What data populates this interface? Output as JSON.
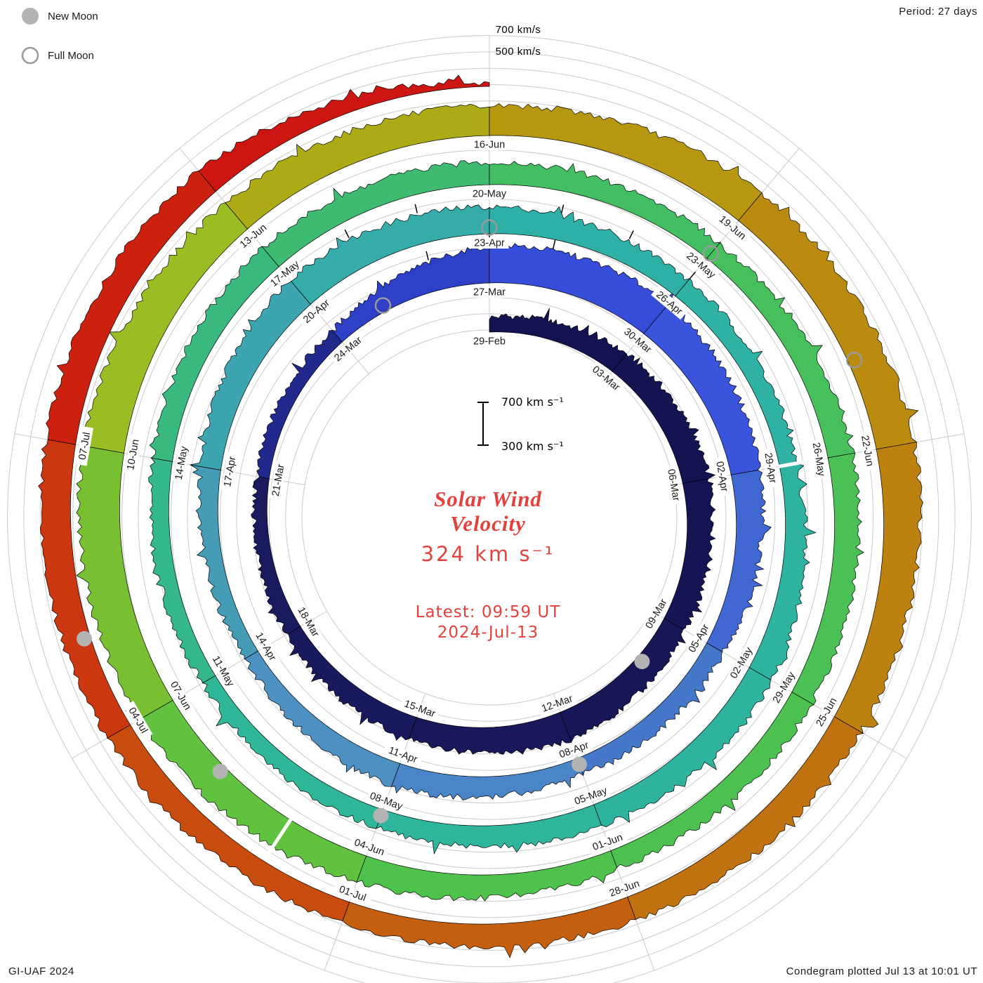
{
  "legend": {
    "new_moon": "New Moon",
    "full_moon": "Full Moon"
  },
  "header": {
    "period": "Period: 27 days"
  },
  "radial_axis": {
    "outer_label": "700 km/s",
    "inner_label": "500 km/s"
  },
  "center": {
    "scale_top": "700 km s⁻¹",
    "scale_bottom": "300 km s⁻¹",
    "title_line1": "Solar Wind",
    "title_line2": "Velocity",
    "current_value": "324 km s⁻¹",
    "latest_line1": "Latest: 09:59 UT",
    "latest_line2": "2024-Jul-13"
  },
  "footer": {
    "left": "GI-UAF 2024",
    "right": "Condegram plotted Jul 13 at 10:01 UT"
  },
  "chart_data": {
    "type": "spiral_polar",
    "title": "Solar Wind Velocity Condegram",
    "period_days": 27,
    "tick_interval_days": 3,
    "start_date": "29-Feb",
    "end_date": "13-Jul",
    "latest_value_km_s": 324,
    "latest_time": "Latest: 09:59 UT 2024-Jul-13",
    "baseline_km_s": 300,
    "outer_scale_labels_km_s": [
      700,
      500
    ],
    "tick_labels": [
      "29-Feb",
      "03-Mar",
      "06-Mar",
      "09-Mar",
      "12-Mar",
      "15-Mar",
      "18-Mar",
      "21-Mar",
      "24-Mar",
      "27-Mar",
      "30-Mar",
      "02-Apr",
      "05-Apr",
      "08-Apr",
      "11-Apr",
      "14-Apr",
      "17-Apr",
      "20-Apr",
      "23-Apr",
      "26-Apr",
      "29-Apr",
      "02-May",
      "05-May",
      "08-May",
      "11-May",
      "14-May",
      "17-May",
      "20-May",
      "23-May",
      "26-May",
      "29-May",
      "01-Jun",
      "04-Jun",
      "07-Jun",
      "10-Jun",
      "13-Jun",
      "16-Jun",
      "19-Jun",
      "22-Jun",
      "25-Jun",
      "28-Jun",
      "01-Jul",
      "04-Jul",
      "07-Jul"
    ],
    "velocity_km_s": {
      "day_step": 3,
      "values": [
        430,
        500,
        540,
        510,
        560,
        500,
        440,
        410,
        430,
        630,
        650,
        560,
        470,
        450,
        510,
        430,
        480,
        590,
        540,
        480,
        450,
        540,
        500,
        470,
        430,
        470,
        520,
        500,
        470,
        530,
        500,
        470,
        540,
        640,
        670,
        600,
        560,
        620,
        640,
        570,
        520,
        490,
        530,
        570,
        540,
        324
      ]
    },
    "color_stops": [
      [
        0,
        "#121250"
      ],
      [
        21,
        "#1b1b60"
      ],
      [
        24,
        "#2636b8"
      ],
      [
        27,
        "#3349d6"
      ],
      [
        32,
        "#3b55dc"
      ],
      [
        36,
        "#4472cc"
      ],
      [
        43,
        "#4e8fc4"
      ],
      [
        48,
        "#3fa2b2"
      ],
      [
        55,
        "#2fb0a6"
      ],
      [
        70,
        "#2eb69a"
      ],
      [
        78,
        "#3bba78"
      ],
      [
        84,
        "#46bf5c"
      ],
      [
        95,
        "#4fc24a"
      ],
      [
        100,
        "#73c133"
      ],
      [
        104,
        "#9ebc20"
      ],
      [
        107,
        "#afa714"
      ],
      [
        110,
        "#b9940e"
      ],
      [
        116,
        "#bd7f10"
      ],
      [
        121,
        "#c2620f"
      ],
      [
        126,
        "#c9430e"
      ],
      [
        130,
        "#cd2310"
      ],
      [
        135,
        "#cd1111"
      ]
    ],
    "new_moon_days": [
      10,
      39,
      69,
      98,
      127
    ],
    "full_moon_days": [
      25,
      54,
      84,
      113
    ],
    "gap_days": [
      60,
      97
    ],
    "event_tick_days": [
      26,
      27,
      28,
      51,
      52,
      53,
      55,
      56,
      57
    ],
    "marker_colors": {
      "new_moon_fill": "#b3b3b3",
      "full_moon_stroke": "#9a9a9a"
    },
    "accent_color": "#e5413c",
    "grid": {
      "visible": true,
      "color": "#c9c9c9"
    }
  }
}
